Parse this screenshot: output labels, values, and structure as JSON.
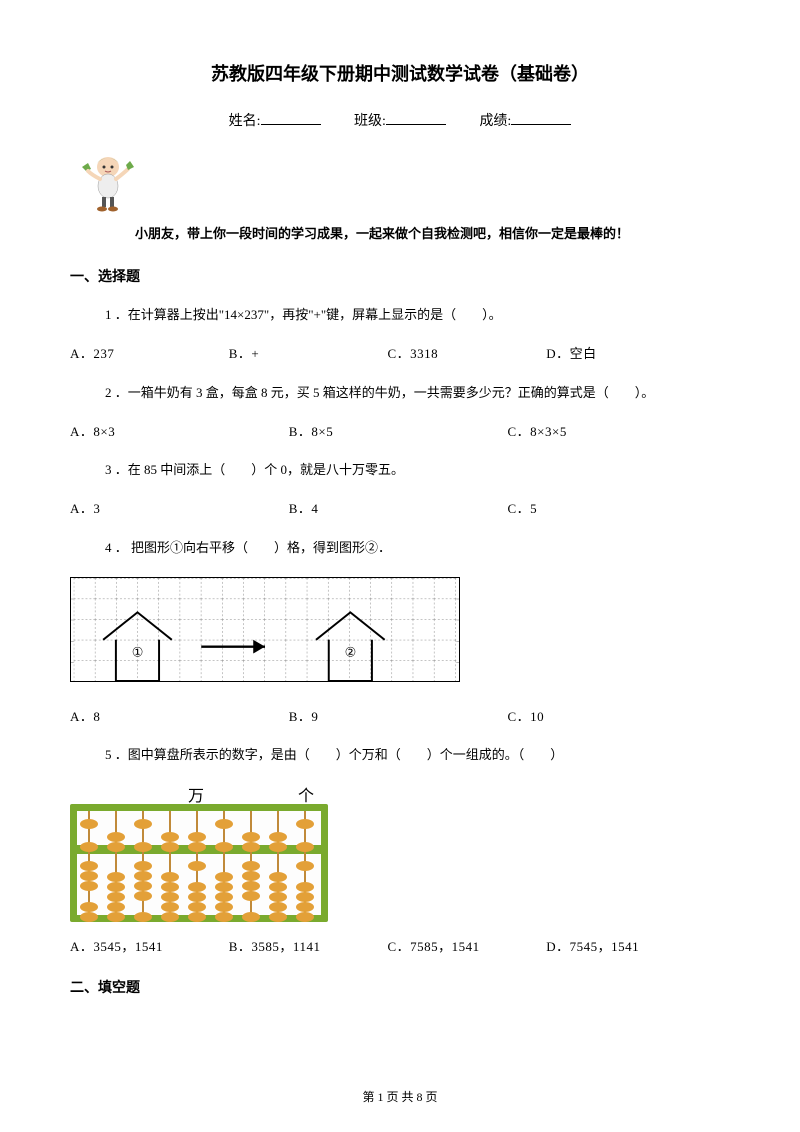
{
  "title": "苏教版四年级下册期中测试数学试卷（基础卷）",
  "info": {
    "name_label": "姓名:",
    "class_label": "班级:",
    "score_label": "成绩:"
  },
  "intro": "小朋友，带上你一段时间的学习成果，一起来做个自我检测吧，相信你一定是最棒的！",
  "sections": {
    "s1": "一、选择题",
    "s2": "二、填空题"
  },
  "q1": {
    "text": "1 ．在计算器上按出\"14×237\"，再按\"+\"键，屏幕上显示的是（　　）。",
    "a": "A．237",
    "b": "B．+",
    "c": "C．3318",
    "d": "D．空白"
  },
  "q2": {
    "text": "2 ．一箱牛奶有 3 盒，每盒 8 元，买 5 箱这样的牛奶，一共需要多少元？正确的算式是（　　）。",
    "a": "A．8×3",
    "b": "B．8×5",
    "c": "C．8×3×5"
  },
  "q3": {
    "text": "3 ．在 85 中间添上（　　）个 0，就是八十万零五。",
    "a": "A．3",
    "b": "B．4",
    "c": "C．5"
  },
  "q4": {
    "text": "4 ． 把图形①向右平移（　　）格，得到图形②．",
    "house1_label": "①",
    "house2_label": "②",
    "a": "A．8",
    "b": "B．9",
    "c": "C．10"
  },
  "q5": {
    "text": "5 ．图中算盘所表示的数字，是由（　　）个万和（　　）个一组成的。（　　）",
    "wan": "万",
    "ge": "个",
    "a": "A．3545，1541",
    "b": "B．3585，1141",
    "c": "C．7585，1541",
    "d": "D．7545，1541"
  },
  "abacus": {
    "rods_x": [
      18,
      45,
      72,
      99,
      126,
      153,
      180,
      207,
      234
    ],
    "label_wan_x": 118,
    "label_ge_x": 228,
    "colors": {
      "frame": "#7aaa2e",
      "rod": "#c08a3a",
      "bead": "#e3a038",
      "inner": "#fdfdfd"
    },
    "upper_beads_up": [
      1,
      0,
      1,
      0,
      0,
      1,
      0,
      0,
      1
    ],
    "upper_beads_down": [
      1,
      2,
      1,
      2,
      2,
      1,
      2,
      2,
      1
    ],
    "lower_beads_up": [
      3,
      0,
      4,
      0,
      1,
      0,
      4,
      0,
      1
    ],
    "lower_beads_down": [
      2,
      5,
      1,
      5,
      4,
      5,
      1,
      5,
      4
    ]
  },
  "footer": {
    "prefix": "第 ",
    "page": "1",
    "mid": " 页 共 ",
    "total": "8",
    "suffix": " 页"
  }
}
